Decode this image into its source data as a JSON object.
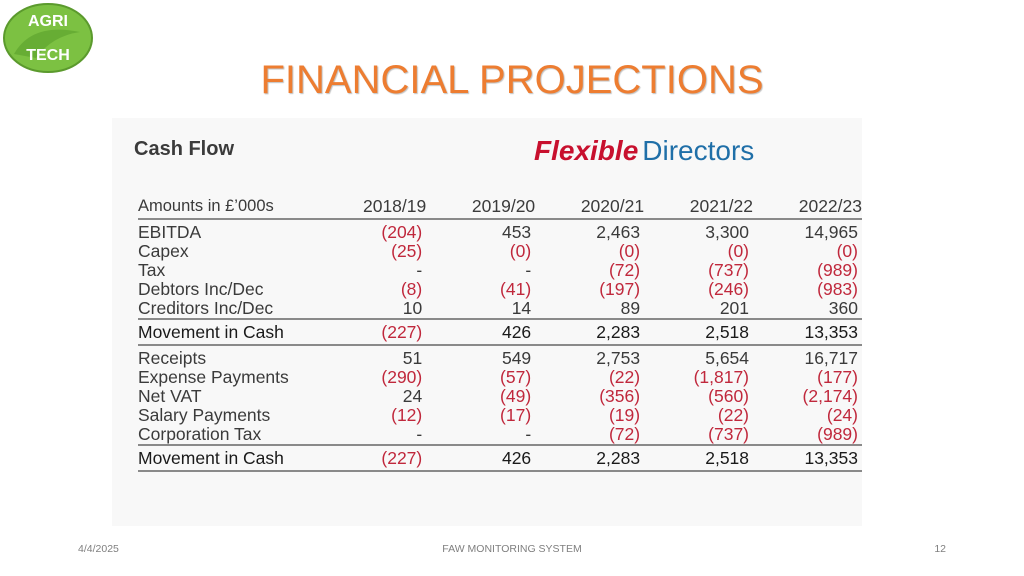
{
  "logo": {
    "text": "AGRITECH"
  },
  "slide": {
    "title": "FINANCIAL PROJECTIONS"
  },
  "panel": {
    "title": "Cash Flow",
    "brand_part1": "Flexible",
    "brand_part2": "Directors"
  },
  "table": {
    "headers": [
      "Amounts in £’000s",
      "2018/19",
      "2019/20",
      "2020/21",
      "2021/22",
      "2022/23"
    ],
    "section1": [
      {
        "label": "EBITDA",
        "values": [
          "(204)",
          "453",
          "2,463",
          "3,300",
          "14,965"
        ]
      },
      {
        "label": "Capex",
        "values": [
          "(25)",
          "(0)",
          "(0)",
          "(0)",
          "(0)"
        ]
      },
      {
        "label": "Tax",
        "values": [
          "-",
          "-",
          "(72)",
          "(737)",
          "(989)"
        ]
      },
      {
        "label": "Debtors Inc/Dec",
        "values": [
          "(8)",
          "(41)",
          "(197)",
          "(246)",
          "(983)"
        ]
      },
      {
        "label": "Creditors Inc/Dec",
        "values": [
          "10",
          "14",
          "89",
          "201",
          "360"
        ]
      }
    ],
    "total1": {
      "label": "Movement in Cash",
      "values": [
        "(227)",
        "426",
        "2,283",
        "2,518",
        "13,353"
      ]
    },
    "section2": [
      {
        "label": "Receipts",
        "values": [
          "51",
          "549",
          "2,753",
          "5,654",
          "16,717"
        ]
      },
      {
        "label": "Expense Payments",
        "values": [
          "(290)",
          "(57)",
          "(22)",
          "(1,817)",
          "(177)"
        ]
      },
      {
        "label": "Net VAT",
        "values": [
          "24",
          "(49)",
          "(356)",
          "(560)",
          "(2,174)"
        ]
      },
      {
        "label": "Salary Payments",
        "values": [
          "(12)",
          "(17)",
          "(19)",
          "(22)",
          "(24)"
        ]
      },
      {
        "label": "Corporation Tax",
        "values": [
          "-",
          "-",
          "(72)",
          "(737)",
          "(989)"
        ]
      }
    ],
    "total2": {
      "label": "Movement in Cash",
      "values": [
        "(227)",
        "426",
        "2,283",
        "2,518",
        "13,353"
      ]
    }
  },
  "footer": {
    "date": "4/4/2025",
    "center": "FAW MONITORING SYSTEM",
    "page": "12"
  }
}
